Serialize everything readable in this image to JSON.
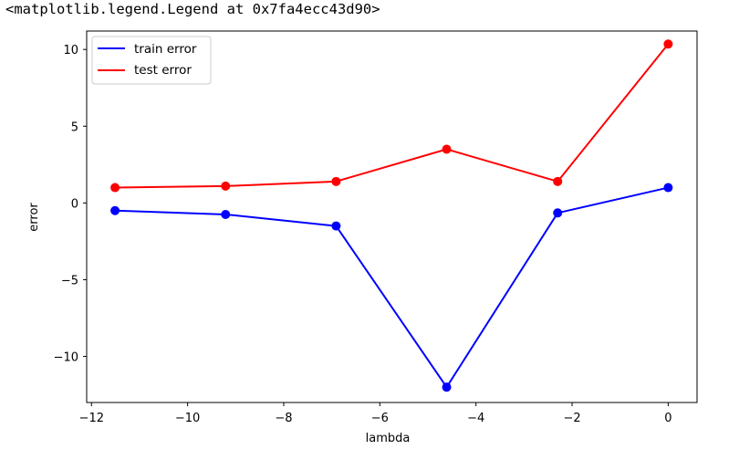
{
  "output_text": "<matplotlib.legend.Legend at 0x7fa4ecc43d90>",
  "chart_data": {
    "type": "line",
    "title": "",
    "xlabel": "lambda",
    "ylabel": "error",
    "xlim": [
      -12.1,
      0.6
    ],
    "ylim": [
      -13.0,
      11.2
    ],
    "xticks": [
      -12,
      -10,
      -8,
      -6,
      -4,
      -2,
      0
    ],
    "xtick_labels": [
      "−12",
      "−10",
      "−8",
      "−6",
      "−4",
      "−2",
      "0"
    ],
    "yticks": [
      -10,
      -5,
      0,
      5,
      10
    ],
    "ytick_labels": [
      "−10",
      "−5",
      "0",
      "5",
      "10"
    ],
    "x": [
      -11.51,
      -9.21,
      -6.91,
      -4.61,
      -2.3,
      0.0
    ],
    "series": [
      {
        "name": "train error",
        "color": "#0000ff",
        "values": [
          -0.5,
          -0.75,
          -1.5,
          -12.0,
          -0.65,
          1.0
        ]
      },
      {
        "name": "test error",
        "color": "#ff0000",
        "values": [
          1.0,
          1.1,
          1.4,
          3.5,
          1.4,
          10.35
        ]
      }
    ],
    "legend_position": "upper-left",
    "grid": false
  }
}
